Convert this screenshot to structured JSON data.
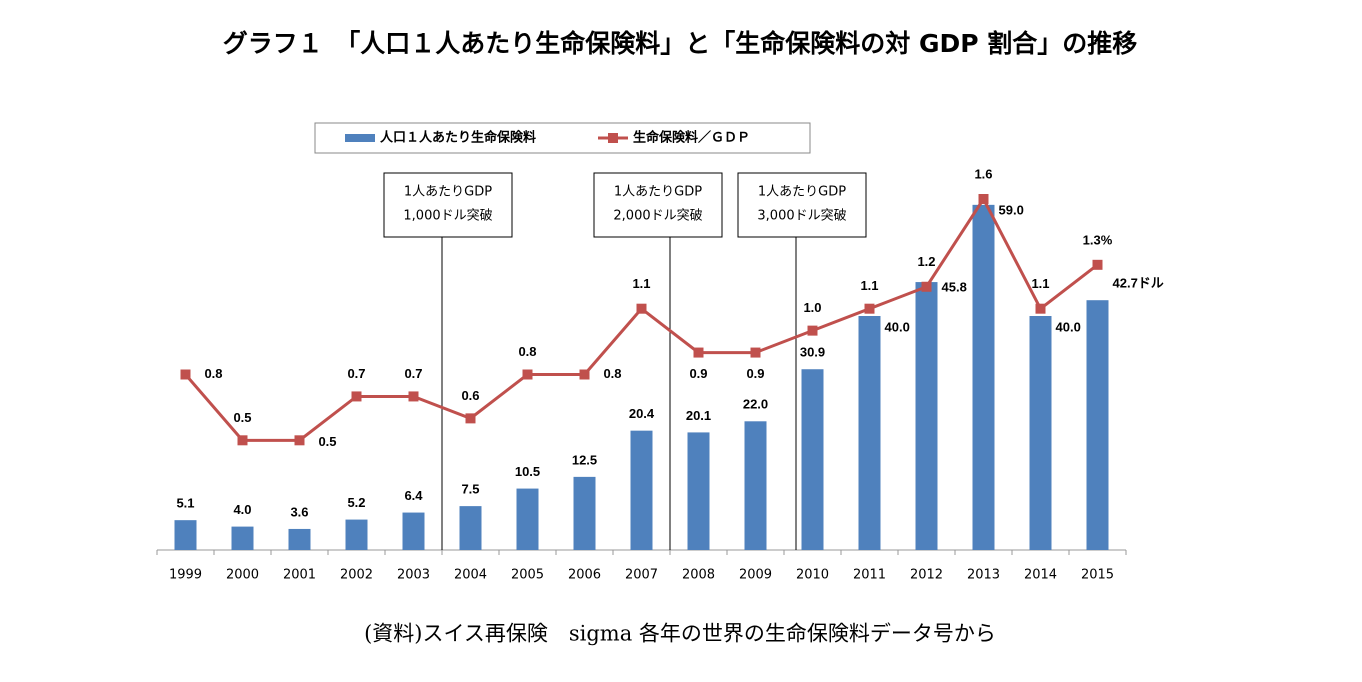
{
  "chart_data": {
    "type": "bar-line",
    "title": "グラフ１　「人口１人あたり生命保険料」と「生命保険料の対 GDP 割合」の推移",
    "categories": [
      "1999",
      "2000",
      "2001",
      "2002",
      "2003",
      "2004",
      "2005",
      "2006",
      "2007",
      "2008",
      "2009",
      "2010",
      "2011",
      "2012",
      "2013",
      "2014",
      "2015"
    ],
    "series": [
      {
        "name": "人口１人あたり生命保険料",
        "color": "#4f81bd",
        "type": "bar",
        "values": [
          5.1,
          4.0,
          3.6,
          5.2,
          6.4,
          7.5,
          10.5,
          12.5,
          20.4,
          20.1,
          22.0,
          30.9,
          40.0,
          45.8,
          59.0,
          40.0,
          42.7
        ],
        "value_labels": [
          "5.1",
          "4.0",
          "3.6",
          "5.2",
          "6.4",
          "7.5",
          "10.5",
          "12.5",
          "20.4",
          "20.1",
          "22.0",
          "30.9",
          "40.0",
          "45.8",
          "59.0",
          "40.0",
          "42.7ドル"
        ]
      },
      {
        "name": "生命保険料／ＧＤＰ",
        "color": "#c0504d",
        "type": "line",
        "axis": "y2",
        "values": [
          0.8,
          0.5,
          0.5,
          0.7,
          0.7,
          0.6,
          0.8,
          0.8,
          1.1,
          0.9,
          0.9,
          1.0,
          1.1,
          1.2,
          1.6,
          1.1,
          1.3
        ],
        "value_labels": [
          "0.8",
          "0.5",
          "0.5",
          "0.7",
          "0.7",
          "0.6",
          "0.8",
          "0.8",
          "1.1",
          "0.9",
          "0.9",
          "1.0",
          "1.1",
          "1.2",
          "1.6",
          "1.1",
          "1.3%"
        ]
      }
    ],
    "ylim": [
      0,
      60
    ],
    "y2lim": [
      0,
      1.6
    ],
    "legend": "top",
    "annotations": [
      {
        "lines": [
          "1人あたりGDP",
          "1,000ドル突破"
        ]
      },
      {
        "lines": [
          "1人あたりGDP",
          "2,000ドル突破"
        ]
      },
      {
        "lines": [
          "1人あたりGDP",
          "3,000ドル突破"
        ]
      }
    ],
    "source": "(資料)スイス再保険　sigma 各年の世界の生命保険料データ号から"
  }
}
